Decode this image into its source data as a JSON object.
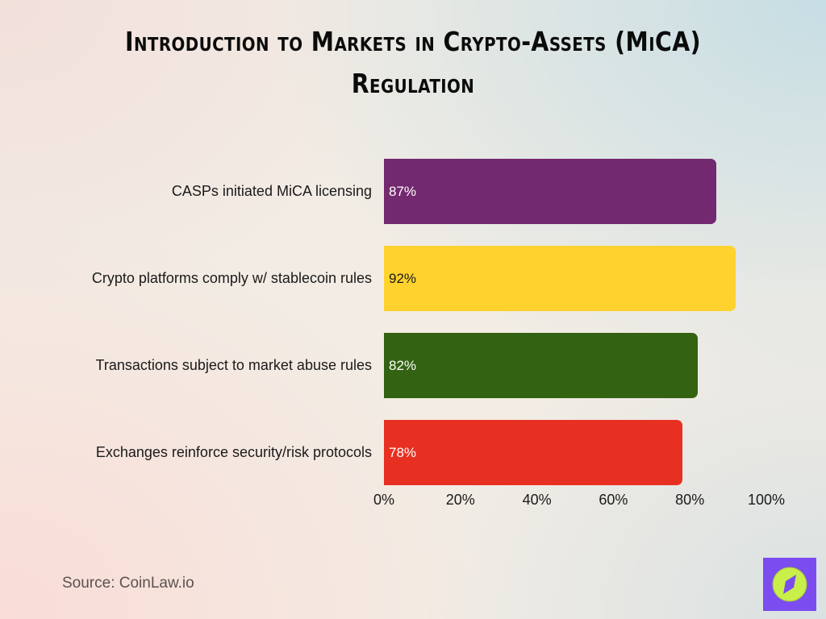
{
  "title": {
    "line1": "Introduction to Markets in Crypto-Assets (MiCA)",
    "line2": "Regulation"
  },
  "source": "Source: CoinLaw.io",
  "logo": {
    "icon": "compass-icon",
    "bg_color": "#7b4cf0",
    "circle_color": "#c8ef4a"
  },
  "axis": {
    "ticks": [
      "0%",
      "20%",
      "40%",
      "60%",
      "80%",
      "100%"
    ]
  },
  "bars": [
    {
      "label": "CASPs initiated MiCA licensing",
      "value": 87,
      "value_label": "87%",
      "color": "#73296f",
      "text_color": "#ffffff"
    },
    {
      "label": "Crypto platforms comply w/ stablecoin rules",
      "value": 92,
      "value_label": "92%",
      "color": "#ffd22e",
      "text_color": "#1a1a1a"
    },
    {
      "label": "Transactions subject to market abuse rules",
      "value": 82,
      "value_label": "82%",
      "color": "#336212",
      "text_color": "#ffffff"
    },
    {
      "label": "Exchanges reinforce security/risk protocols",
      "value": 78,
      "value_label": "78%",
      "color": "#e83022",
      "text_color": "#ffffff"
    }
  ],
  "chart_data": {
    "type": "bar",
    "orientation": "horizontal",
    "title": "Introduction to Markets in Crypto-Assets (MiCA) Regulation",
    "categories": [
      "CASPs initiated MiCA licensing",
      "Crypto platforms comply w/ stablecoin rules",
      "Transactions subject to market abuse rules",
      "Exchanges reinforce security/risk protocols"
    ],
    "values": [
      87,
      92,
      82,
      78
    ],
    "data_labels": [
      "87%",
      "92%",
      "82%",
      "78%"
    ],
    "colors": [
      "#73296f",
      "#ffd22e",
      "#336212",
      "#e83022"
    ],
    "xlabel": "",
    "ylabel": "",
    "xlim": [
      0,
      100
    ],
    "x_ticks": [
      "0%",
      "20%",
      "40%",
      "60%",
      "80%",
      "100%"
    ],
    "grid": false,
    "legend": null,
    "annotation": "Source: CoinLaw.io"
  }
}
